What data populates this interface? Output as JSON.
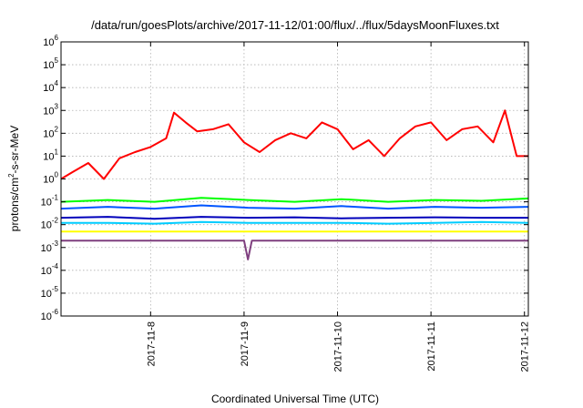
{
  "chart_data": {
    "type": "line",
    "title": "/data/run/goesPlots/archive/2017-11-12/01:00/flux/../flux/5daysMoonFluxes.txt",
    "xlabel": "Coordinated Universal Time (UTC)",
    "ylabel": "protons/cm²-s-sr-MeV",
    "ylabel_parts": {
      "pre": "protons/cm",
      "sup": "2",
      "post": "-s-sr-MeV"
    },
    "y_scale": "log",
    "ylim": [
      1e-06,
      1000000.0
    ],
    "y_ticks": [
      {
        "base": "10",
        "exp": "-6"
      },
      {
        "base": "10",
        "exp": "-5"
      },
      {
        "base": "10",
        "exp": "-4"
      },
      {
        "base": "10",
        "exp": "-3"
      },
      {
        "base": "10",
        "exp": "-2"
      },
      {
        "base": "10",
        "exp": "-1"
      },
      {
        "base": "10",
        "exp": "0"
      },
      {
        "base": "10",
        "exp": "1"
      },
      {
        "base": "10",
        "exp": "2"
      },
      {
        "base": "10",
        "exp": "3"
      },
      {
        "base": "10",
        "exp": "4"
      },
      {
        "base": "10",
        "exp": "5"
      },
      {
        "base": "10",
        "exp": "6"
      }
    ],
    "xlim": [
      "2017-11-07T01:00",
      "2017-11-12T01:00"
    ],
    "x_ticks": [
      "2017-11-8",
      "2017-11-9",
      "2017-11-10",
      "2017-11-11",
      "2017-11-12"
    ],
    "grid": true,
    "legend": "none",
    "series": [
      {
        "color": "#ff0000",
        "x": [
          "2017-11-07T01:00",
          "2017-11-07T04:00",
          "2017-11-07T08:00",
          "2017-11-07T12:00",
          "2017-11-07T16:00",
          "2017-11-07T20:00",
          "2017-11-08T00:00",
          "2017-11-08T04:00",
          "2017-11-08T06:00",
          "2017-11-08T09:00",
          "2017-11-08T12:00",
          "2017-11-08T16:00",
          "2017-11-08T20:00",
          "2017-11-09T00:00",
          "2017-11-09T04:00",
          "2017-11-09T08:00",
          "2017-11-09T12:00",
          "2017-11-09T16:00",
          "2017-11-09T20:00",
          "2017-11-10T00:00",
          "2017-11-10T04:00",
          "2017-11-10T08:00",
          "2017-11-10T12:00",
          "2017-11-10T16:00",
          "2017-11-10T20:00",
          "2017-11-11T00:00",
          "2017-11-11T04:00",
          "2017-11-11T08:00",
          "2017-11-11T12:00",
          "2017-11-11T16:00",
          "2017-11-11T19:00",
          "2017-11-11T22:00",
          "2017-11-12T01:00"
        ],
        "y": [
          1,
          2,
          5,
          1,
          8,
          15,
          25,
          60,
          800,
          300,
          120,
          150,
          250,
          40,
          15,
          50,
          100,
          60,
          300,
          150,
          20,
          50,
          10,
          60,
          200,
          300,
          50,
          150,
          200,
          40,
          1000,
          10,
          10
        ]
      },
      {
        "color": "#00ff00",
        "x": [
          "2017-11-07T01:00",
          "2017-11-07T13:00",
          "2017-11-08T01:00",
          "2017-11-08T13:00",
          "2017-11-09T01:00",
          "2017-11-09T13:00",
          "2017-11-10T01:00",
          "2017-11-10T13:00",
          "2017-11-11T01:00",
          "2017-11-11T13:00",
          "2017-11-12T01:00"
        ],
        "y": [
          0.1,
          0.12,
          0.1,
          0.15,
          0.12,
          0.1,
          0.13,
          0.1,
          0.12,
          0.11,
          0.14
        ]
      },
      {
        "color": "#0055ff",
        "x": [
          "2017-11-07T01:00",
          "2017-11-07T13:00",
          "2017-11-08T01:00",
          "2017-11-08T13:00",
          "2017-11-09T01:00",
          "2017-11-09T13:00",
          "2017-11-10T01:00",
          "2017-11-10T13:00",
          "2017-11-11T01:00",
          "2017-11-11T13:00",
          "2017-11-12T01:00"
        ],
        "y": [
          0.05,
          0.06,
          0.05,
          0.07,
          0.055,
          0.05,
          0.065,
          0.05,
          0.06,
          0.055,
          0.06
        ]
      },
      {
        "color": "#00ccff",
        "x": [
          "2017-11-07T01:00",
          "2017-11-07T13:00",
          "2017-11-08T01:00",
          "2017-11-08T13:00",
          "2017-11-09T01:00",
          "2017-11-09T13:00",
          "2017-11-10T01:00",
          "2017-11-10T13:00",
          "2017-11-11T01:00",
          "2017-11-11T13:00",
          "2017-11-12T01:00"
        ],
        "y": [
          0.012,
          0.012,
          0.011,
          0.013,
          0.012,
          0.012,
          0.012,
          0.011,
          0.012,
          0.013,
          0.012
        ]
      },
      {
        "color": "#0000bb",
        "x": [
          "2017-11-07T01:00",
          "2017-11-07T13:00",
          "2017-11-08T01:00",
          "2017-11-08T13:00",
          "2017-11-09T01:00",
          "2017-11-09T13:00",
          "2017-11-10T01:00",
          "2017-11-10T13:00",
          "2017-11-11T01:00",
          "2017-11-11T13:00",
          "2017-11-12T01:00"
        ],
        "y": [
          0.02,
          0.022,
          0.018,
          0.022,
          0.02,
          0.021,
          0.019,
          0.02,
          0.021,
          0.02,
          0.02
        ]
      },
      {
        "color": "#ffff00",
        "x": [
          "2017-11-07T01:00",
          "2017-11-07T13:00",
          "2017-11-08T01:00",
          "2017-11-08T13:00",
          "2017-11-09T01:00",
          "2017-11-09T13:00",
          "2017-11-10T01:00",
          "2017-11-10T13:00",
          "2017-11-11T01:00",
          "2017-11-11T13:00",
          "2017-11-12T01:00"
        ],
        "y": [
          0.005,
          0.005,
          0.005,
          0.005,
          0.005,
          0.005,
          0.005,
          0.005,
          0.005,
          0.005,
          0.005
        ]
      },
      {
        "color": "#7f3f7f",
        "x": [
          "2017-11-07T01:00",
          "2017-11-07T12:00",
          "2017-11-08T01:00",
          "2017-11-08T13:00",
          "2017-11-09T00:00",
          "2017-11-09T01:00",
          "2017-11-09T02:00",
          "2017-11-09T13:00",
          "2017-11-10T01:00",
          "2017-11-10T13:00",
          "2017-11-11T01:00",
          "2017-11-11T13:00",
          "2017-11-12T01:00"
        ],
        "y": [
          0.002,
          0.002,
          0.002,
          0.002,
          0.002,
          0.0003,
          0.002,
          0.002,
          0.002,
          0.002,
          0.002,
          0.002,
          0.002
        ]
      }
    ]
  }
}
